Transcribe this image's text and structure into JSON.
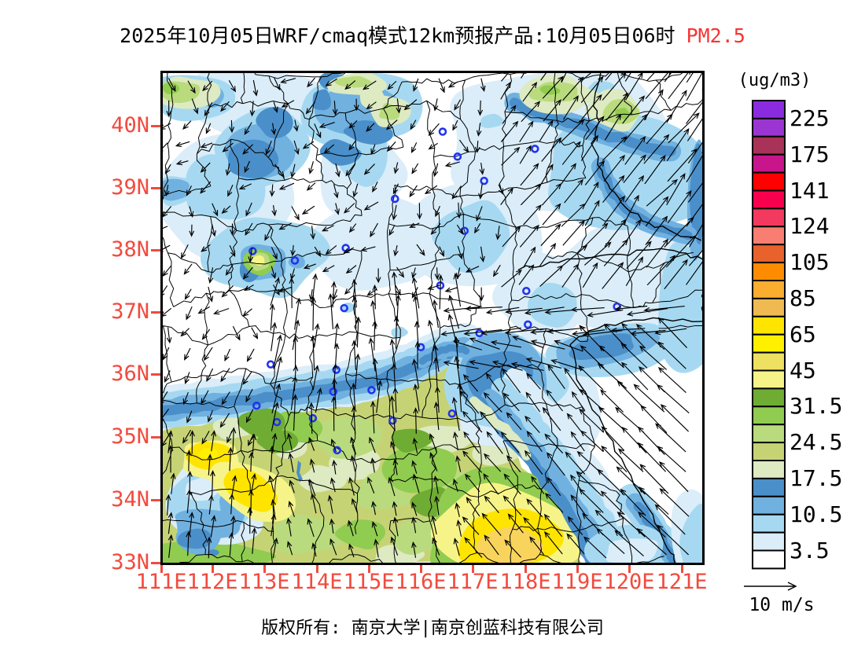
{
  "title": {
    "text": "2025年10月05日WRF/cmaq模式12km预报产品:10月05日06时",
    "pollutant": "PM2.5"
  },
  "axes": {
    "lat": [
      "40N",
      "39N",
      "38N",
      "37N",
      "36N",
      "35N",
      "34N",
      "33N"
    ],
    "lon": [
      "111E",
      "112E",
      "113E",
      "114E",
      "115E",
      "116E",
      "117E",
      "118E",
      "119E",
      "120E",
      "121E"
    ]
  },
  "colorbar": {
    "unit": "(ug/m3)",
    "labels": [
      "225",
      "175",
      "141",
      "124",
      "105",
      "85",
      "65",
      "45",
      "31.5",
      "24.5",
      "17.5",
      "10.5",
      "3.5"
    ],
    "colors": [
      "#8b2be0",
      "#9b35d2",
      "#a93258",
      "#c8158b",
      "#ff0000",
      "#f8004e",
      "#f4395e",
      "#f97e72",
      "#e8622b",
      "#ff8c00",
      "#faad2e",
      "#efba52",
      "#ffe400",
      "#fff000",
      "#eee060",
      "#f6f488",
      "#6fac34",
      "#90cc50",
      "#b9db7d",
      "#c6d375",
      "#ddeac2",
      "#4a8fc9",
      "#70b1e0",
      "#a6d9f1",
      "#daedf9",
      "#ffffff"
    ]
  },
  "wind_legend": {
    "label": "10 m/s"
  },
  "footer": {
    "text": "版权所有: 南京大学|南京创蓝科技有限公司"
  },
  "theme": {
    "annotation_red": "#f24a3e",
    "title_red": "#f63434",
    "boundary_black": "#000000",
    "marker_blue": "#2233ee",
    "yellow_core": "#f8d45c"
  }
}
